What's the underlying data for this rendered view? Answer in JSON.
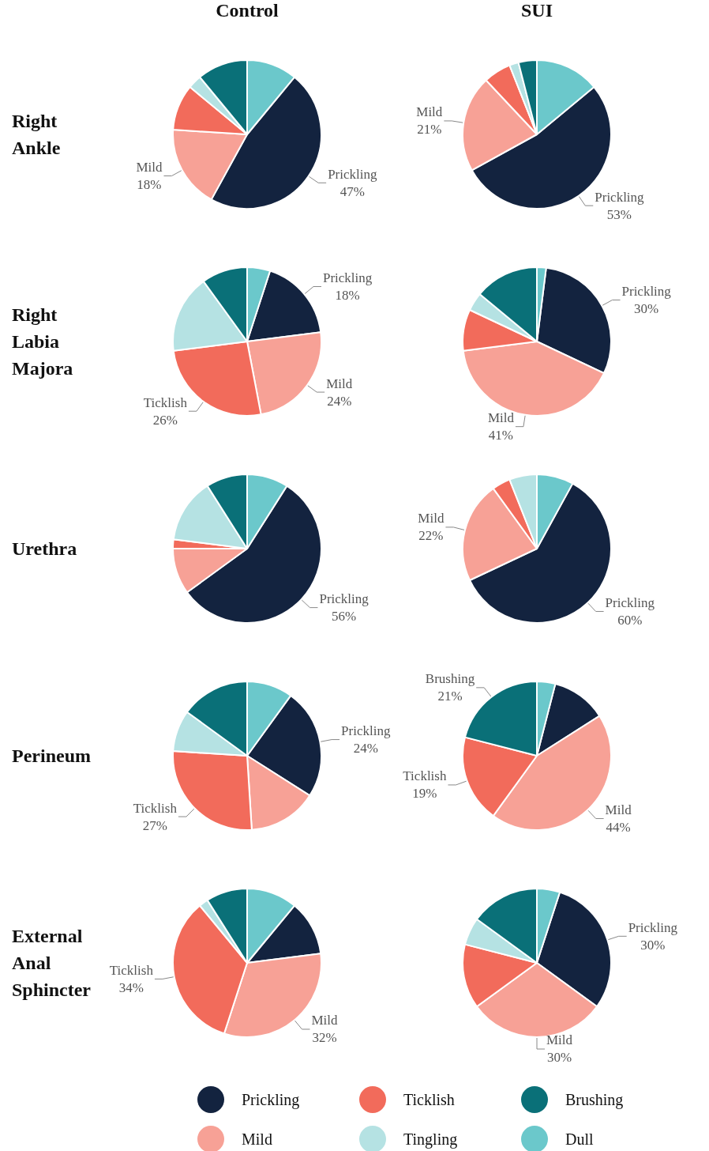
{
  "chart_data": [
    {
      "type": "pie",
      "title": "Control",
      "ylabel": "Right Ankle",
      "legend": "bottom",
      "categories": [
        "Prickling",
        "Mild",
        "Ticklish",
        "Tingling",
        "Brushing",
        "Dull"
      ],
      "colors": [
        "#13233f",
        "#f7a196",
        "#f26b5b",
        "#b5e2e3",
        "#0a7078",
        "#6bc8cb"
      ],
      "values": [
        47,
        18,
        10,
        3,
        11,
        11
      ],
      "value_labels": [
        "47%",
        "18%",
        null,
        null,
        null,
        null
      ]
    },
    {
      "type": "pie",
      "title": "SUI",
      "categories": [
        "Prickling",
        "Mild",
        null,
        null,
        null,
        null
      ],
      "colors": [
        "#13233f",
        "#f7a196",
        "#f26b5b",
        "#b5e2e3",
        "#0a7078",
        "#6bc8cb"
      ],
      "values": [
        53,
        21,
        6,
        2,
        4,
        14
      ],
      "value_labels": [
        "53%",
        "21%",
        null,
        null,
        null,
        null
      ]
    },
    {
      "type": "pie",
      "ylabel": "Right Labia Majora",
      "categories": [
        "Prickling",
        "Mild",
        "Ticklish",
        null,
        null,
        null
      ],
      "colors": [
        "#13233f",
        "#f7a196",
        "#f26b5b",
        "#b5e2e3",
        "#0a7078",
        "#6bc8cb"
      ],
      "values": [
        18,
        24,
        26,
        17,
        10,
        5
      ],
      "value_labels": [
        "18%",
        "24%",
        "26%",
        null,
        null,
        null
      ]
    },
    {
      "type": "pie",
      "categories": [
        "Prickling",
        "Mild",
        null,
        null,
        null,
        null
      ],
      "colors": [
        "#13233f",
        "#f7a196",
        "#f26b5b",
        "#b5e2e3",
        "#0a7078",
        "#6bc8cb"
      ],
      "values": [
        30,
        41,
        9,
        4,
        14,
        2
      ],
      "value_labels": [
        "30%",
        "41%",
        null,
        null,
        null,
        null
      ]
    },
    {
      "type": "pie",
      "ylabel": "Urethra",
      "categories": [
        "Prickling",
        null,
        null,
        null,
        null,
        null
      ],
      "colors": [
        "#13233f",
        "#f7a196",
        "#f26b5b",
        "#b5e2e3",
        "#0a7078",
        "#6bc8cb"
      ],
      "values": [
        56,
        10,
        2,
        14,
        9,
        9
      ],
      "value_labels": [
        "56%",
        null,
        null,
        null,
        null,
        null
      ]
    },
    {
      "type": "pie",
      "categories": [
        "Prickling",
        "Mild",
        null,
        null,
        null,
        null
      ],
      "colors": [
        "#13233f",
        "#f7a196",
        "#f26b5b",
        "#b5e2e3",
        "#0a7078",
        "#6bc8cb"
      ],
      "values": [
        60,
        22,
        4,
        6,
        0,
        8
      ],
      "value_labels": [
        "60%",
        "22%",
        null,
        null,
        null,
        null
      ]
    },
    {
      "type": "pie",
      "ylabel": "Perineum",
      "categories": [
        "Prickling",
        null,
        "Ticklish",
        null,
        null,
        null
      ],
      "colors": [
        "#13233f",
        "#f7a196",
        "#f26b5b",
        "#b5e2e3",
        "#0a7078",
        "#6bc8cb"
      ],
      "values": [
        24,
        15,
        27,
        9,
        15,
        10
      ],
      "value_labels": [
        "24%",
        null,
        "27%",
        null,
        null,
        null
      ]
    },
    {
      "type": "pie",
      "categories": [
        null,
        "Mild",
        "Ticklish",
        null,
        "Brushing",
        null
      ],
      "colors": [
        "#13233f",
        "#f7a196",
        "#f26b5b",
        "#b5e2e3",
        "#0a7078",
        "#6bc8cb"
      ],
      "values": [
        12,
        44,
        19,
        0,
        21,
        4
      ],
      "value_labels": [
        null,
        "44%",
        "19%",
        null,
        "21%",
        null
      ]
    },
    {
      "type": "pie",
      "ylabel": "External Anal Sphincter",
      "categories": [
        null,
        "Mild",
        "Ticklish",
        null,
        null,
        null
      ],
      "colors": [
        "#13233f",
        "#f7a196",
        "#f26b5b",
        "#b5e2e3",
        "#0a7078",
        "#6bc8cb"
      ],
      "values": [
        12,
        32,
        34,
        2,
        9,
        11
      ],
      "value_labels": [
        null,
        "32%",
        "34%",
        null,
        null,
        null
      ]
    },
    {
      "type": "pie",
      "categories": [
        "Prickling",
        "Mild",
        null,
        null,
        null,
        null
      ],
      "colors": [
        "#13233f",
        "#f7a196",
        "#f26b5b",
        "#b5e2e3",
        "#0a7078",
        "#6bc8cb"
      ],
      "values": [
        30,
        30,
        14,
        6,
        15,
        5
      ],
      "value_labels": [
        "30%",
        "30%",
        null,
        null,
        null,
        null
      ]
    }
  ]
}
